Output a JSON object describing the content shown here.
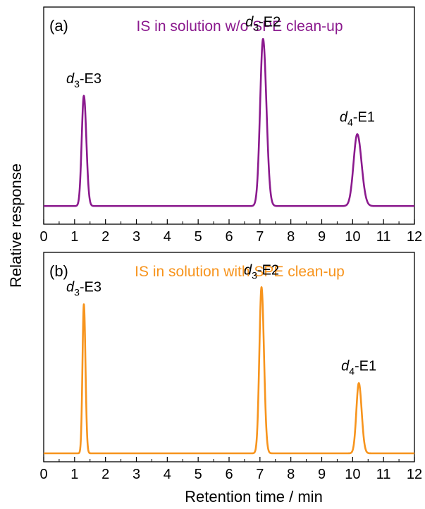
{
  "figure": {
    "ylabel": "Relative response",
    "xlabel": "Retention time / min"
  },
  "chart_data": [
    {
      "type": "line",
      "panel_label": "(a)",
      "title": "IS in solution w/o SPE clean-up",
      "color": "#8b1a8e",
      "xlim": [
        0,
        12
      ],
      "x_ticks": [
        0,
        1,
        2,
        3,
        4,
        5,
        6,
        7,
        8,
        9,
        10,
        11,
        12
      ],
      "baseline": 0.02,
      "peaks": [
        {
          "rt": 1.3,
          "height": 0.66,
          "width": 0.07,
          "prefix": "d",
          "sub": "3",
          "suffix": "-E3"
        },
        {
          "rt": 7.1,
          "height": 1.0,
          "width": 0.095,
          "prefix": "d",
          "sub": "3",
          "suffix": "-E2"
        },
        {
          "rt": 10.15,
          "height": 0.43,
          "width": 0.12,
          "prefix": "d",
          "sub": "4",
          "suffix": "-E1"
        }
      ]
    },
    {
      "type": "line",
      "panel_label": "(b)",
      "title": "IS in solution with SPE clean-up",
      "color": "#f7941d",
      "xlim": [
        0,
        12
      ],
      "x_ticks": [
        0,
        1,
        2,
        3,
        4,
        5,
        6,
        7,
        8,
        9,
        10,
        11,
        12
      ],
      "baseline": 0.0,
      "peaks": [
        {
          "rt": 1.3,
          "height": 0.87,
          "width": 0.045,
          "prefix": "d",
          "sub": "3",
          "suffix": "-E3"
        },
        {
          "rt": 7.05,
          "height": 0.97,
          "width": 0.07,
          "prefix": "d",
          "sub": "3",
          "suffix": "-E2"
        },
        {
          "rt": 10.2,
          "height": 0.41,
          "width": 0.08,
          "prefix": "d",
          "sub": "4",
          "suffix": "-E1"
        }
      ]
    }
  ]
}
